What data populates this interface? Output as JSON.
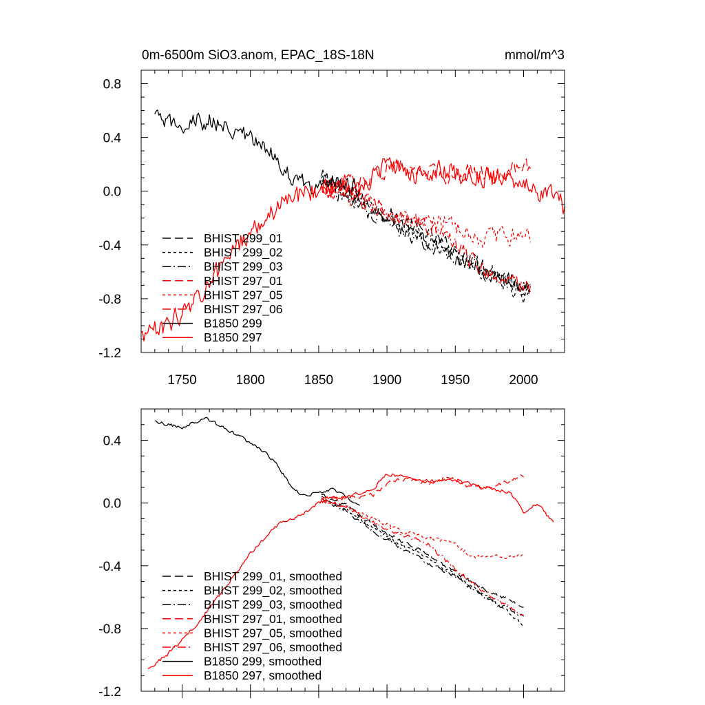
{
  "colors": {
    "black": "#000000",
    "red": "#ff0000"
  },
  "chart_data": [
    {
      "type": "line",
      "title_left": "0m-6500m SiO3.anom, EPAC_18S-18N",
      "title_right": "mmol/m^3",
      "xlim": [
        1720,
        2030
      ],
      "ylim": [
        -1.2,
        0.9
      ],
      "xticks": [
        1750,
        1800,
        1850,
        1900,
        1950,
        2000
      ],
      "yticks": [
        0.8,
        0.4,
        0.0,
        -0.4,
        -0.8,
        -1.2
      ],
      "ytick_labels": [
        "0.8",
        "0.4",
        "0.0",
        "-0.4",
        "-0.8",
        "-1.2"
      ],
      "xtick_labels": [
        "1750",
        "1800",
        "1850",
        "1900",
        "1950",
        "2000"
      ],
      "noise_note": "annual series; values below are the trend, drawn with annual wiggle of given amplitude",
      "series": [
        {
          "name": "BHIST 299_01",
          "color": "black",
          "dash": "long",
          "noise": 0.06,
          "x": [
            1852,
            1870,
            1890,
            1910,
            1930,
            1950,
            1970,
            1990,
            2005
          ],
          "y": [
            0.1,
            0.0,
            -0.12,
            -0.22,
            -0.33,
            -0.45,
            -0.55,
            -0.66,
            -0.74
          ]
        },
        {
          "name": "BHIST 299_02",
          "color": "black",
          "dash": "short",
          "noise": 0.06,
          "x": [
            1852,
            1870,
            1890,
            1910,
            1930,
            1950,
            1970,
            1990,
            2005
          ],
          "y": [
            0.08,
            -0.02,
            -0.14,
            -0.26,
            -0.36,
            -0.47,
            -0.58,
            -0.7,
            -0.8
          ]
        },
        {
          "name": "BHIST 299_03",
          "color": "black",
          "dash": "dashdot",
          "noise": 0.06,
          "x": [
            1852,
            1870,
            1890,
            1910,
            1930,
            1950,
            1970,
            1990,
            2005
          ],
          "y": [
            0.06,
            -0.03,
            -0.16,
            -0.28,
            -0.38,
            -0.48,
            -0.6,
            -0.68,
            -0.72
          ]
        },
        {
          "name": "BHIST 297_01",
          "color": "red",
          "dash": "long",
          "noise": 0.06,
          "x": [
            1852,
            1870,
            1890,
            1900,
            1920,
            1940,
            1960,
            1980,
            2000,
            2005
          ],
          "y": [
            0.02,
            0.05,
            0.1,
            0.18,
            0.16,
            0.12,
            0.15,
            0.12,
            0.18,
            0.2
          ]
        },
        {
          "name": "BHIST 297_05",
          "color": "red",
          "dash": "short",
          "noise": 0.06,
          "x": [
            1852,
            1870,
            1890,
            1910,
            1930,
            1950,
            1970,
            1990,
            2005
          ],
          "y": [
            0.02,
            -0.05,
            -0.12,
            -0.18,
            -0.22,
            -0.25,
            -0.35,
            -0.33,
            -0.32
          ]
        },
        {
          "name": "BHIST 297_06",
          "color": "red",
          "dash": "dashdot",
          "noise": 0.06,
          "x": [
            1852,
            1870,
            1890,
            1910,
            1930,
            1950,
            1970,
            1990,
            2005
          ],
          "y": [
            0.03,
            0.0,
            -0.1,
            -0.2,
            -0.25,
            -0.4,
            -0.58,
            -0.66,
            -0.72
          ]
        },
        {
          "name": "B1850 299",
          "color": "black",
          "dash": "solid",
          "noise": 0.06,
          "x": [
            1730,
            1740,
            1750,
            1760,
            1770,
            1780,
            1790,
            1800,
            1810,
            1820,
            1830,
            1840,
            1850,
            1860,
            1870,
            1880
          ],
          "y": [
            0.55,
            0.5,
            0.5,
            0.52,
            0.52,
            0.48,
            0.46,
            0.38,
            0.32,
            0.25,
            0.1,
            0.05,
            0.06,
            0.08,
            0.05,
            0.0
          ]
        },
        {
          "name": "B1850 297",
          "color": "red",
          "dash": "solid",
          "noise": 0.07,
          "x": [
            1720,
            1740,
            1760,
            1780,
            1800,
            1820,
            1840,
            1860,
            1880,
            1900,
            1920,
            1940,
            1960,
            1980,
            2000,
            2010,
            2020,
            2030
          ],
          "y": [
            -1.08,
            -1.0,
            -0.8,
            -0.55,
            -0.3,
            -0.12,
            0.0,
            0.03,
            0.05,
            0.18,
            0.12,
            0.15,
            0.12,
            0.1,
            0.08,
            -0.05,
            0.0,
            -0.12
          ]
        }
      ]
    },
    {
      "type": "line",
      "xlim": [
        1720,
        2030
      ],
      "ylim": [
        -1.2,
        0.6
      ],
      "yticks": [
        0.4,
        0.0,
        -0.4,
        -0.8,
        -1.2
      ],
      "ytick_labels": [
        "0.4",
        "0.0",
        "-0.4",
        "-0.8",
        "-1.2"
      ],
      "series": [
        {
          "name": "BHIST 299_01, smoothed",
          "color": "black",
          "dash": "long",
          "noise": 0.012,
          "x": [
            1852,
            1870,
            1890,
            1910,
            1930,
            1950,
            1970,
            1990,
            2000
          ],
          "y": [
            0.05,
            -0.02,
            -0.14,
            -0.24,
            -0.33,
            -0.44,
            -0.54,
            -0.62,
            -0.67
          ]
        },
        {
          "name": "BHIST 299_02, smoothed",
          "color": "black",
          "dash": "short",
          "noise": 0.012,
          "x": [
            1852,
            1870,
            1890,
            1910,
            1930,
            1950,
            1970,
            1990,
            2000
          ],
          "y": [
            0.04,
            -0.04,
            -0.16,
            -0.26,
            -0.36,
            -0.46,
            -0.58,
            -0.7,
            -0.79
          ]
        },
        {
          "name": "BHIST 299_03, smoothed",
          "color": "black",
          "dash": "dashdot",
          "noise": 0.012,
          "x": [
            1852,
            1870,
            1890,
            1910,
            1930,
            1950,
            1970,
            1990,
            2000
          ],
          "y": [
            0.03,
            -0.05,
            -0.18,
            -0.28,
            -0.38,
            -0.46,
            -0.6,
            -0.68,
            -0.72
          ]
        },
        {
          "name": "BHIST 297_01, smoothed",
          "color": "red",
          "dash": "long",
          "noise": 0.012,
          "x": [
            1852,
            1870,
            1890,
            1900,
            1915,
            1930,
            1945,
            1960,
            1975,
            1990,
            2000
          ],
          "y": [
            0.01,
            0.03,
            0.05,
            0.12,
            0.16,
            0.12,
            0.17,
            0.1,
            0.1,
            0.14,
            0.17
          ]
        },
        {
          "name": "BHIST 297_05, smoothed",
          "color": "red",
          "dash": "short",
          "noise": 0.012,
          "x": [
            1852,
            1870,
            1890,
            1910,
            1930,
            1950,
            1960,
            1970,
            1990,
            2000
          ],
          "y": [
            0.01,
            -0.03,
            -0.1,
            -0.18,
            -0.22,
            -0.26,
            -0.33,
            -0.35,
            -0.34,
            -0.33
          ]
        },
        {
          "name": "BHIST 297_06, smoothed",
          "color": "red",
          "dash": "dashdot",
          "noise": 0.012,
          "x": [
            1852,
            1870,
            1890,
            1910,
            1930,
            1950,
            1970,
            1990,
            2000
          ],
          "y": [
            0.02,
            -0.02,
            -0.12,
            -0.2,
            -0.26,
            -0.42,
            -0.56,
            -0.66,
            -0.72
          ]
        },
        {
          "name": "B1850 299, smoothed",
          "color": "black",
          "dash": "solid",
          "noise": 0.01,
          "x": [
            1730,
            1740,
            1750,
            1760,
            1768,
            1780,
            1790,
            1800,
            1810,
            1820,
            1830,
            1840,
            1850,
            1860,
            1870,
            1880
          ],
          "y": [
            0.52,
            0.5,
            0.48,
            0.52,
            0.54,
            0.48,
            0.44,
            0.38,
            0.33,
            0.24,
            0.1,
            0.04,
            0.07,
            0.09,
            0.04,
            -0.02
          ]
        },
        {
          "name": "B1850 297, smoothed",
          "color": "red",
          "dash": "solid",
          "noise": 0.01,
          "x": [
            1725,
            1740,
            1760,
            1780,
            1800,
            1820,
            1840,
            1855,
            1870,
            1890,
            1900,
            1915,
            1930,
            1950,
            1970,
            1990,
            2000,
            2010,
            2022
          ],
          "y": [
            -1.06,
            -0.96,
            -0.78,
            -0.56,
            -0.32,
            -0.14,
            -0.06,
            0.03,
            0.04,
            0.09,
            0.19,
            0.16,
            0.14,
            0.15,
            0.1,
            0.07,
            -0.06,
            0.0,
            -0.13
          ]
        }
      ]
    }
  ]
}
